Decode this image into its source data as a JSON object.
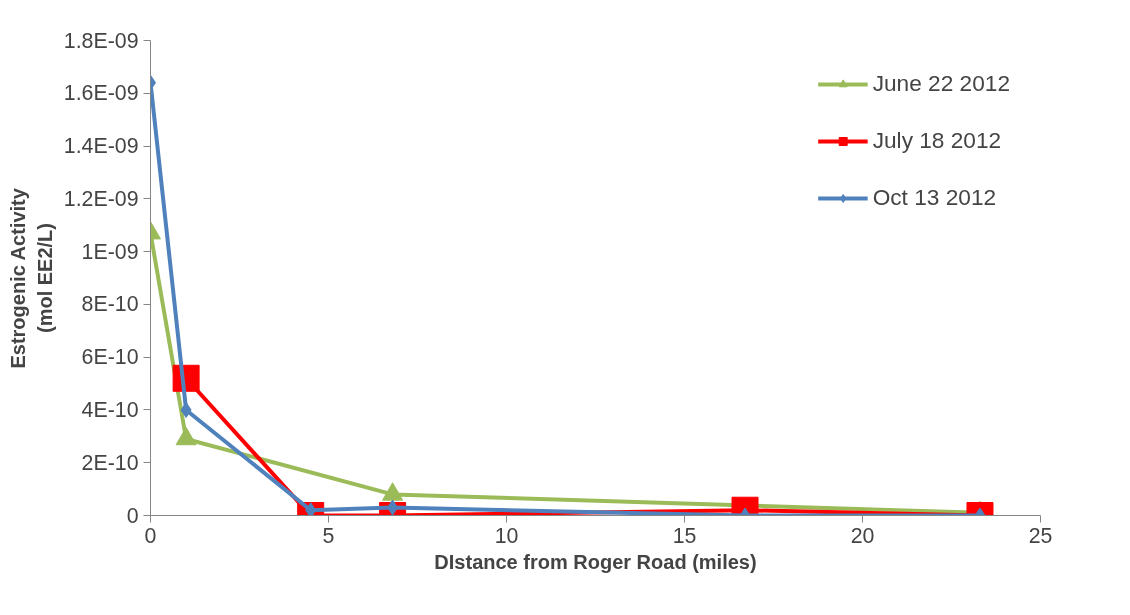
{
  "chart_data": {
    "type": "line",
    "xlabel": "DIstance from Roger Road (miles)",
    "ylabel": "Estrogenic Activity\n(mol EE2/L)",
    "xlim": [
      0,
      25
    ],
    "xticks": [
      0,
      5,
      10,
      15,
      20,
      25
    ],
    "ylim": [
      0,
      1.8e-09
    ],
    "yticks": [
      {
        "value": 0,
        "label": "0"
      },
      {
        "value": 2e-10,
        "label": "2E-10"
      },
      {
        "value": 4e-10,
        "label": "4E-10"
      },
      {
        "value": 6e-10,
        "label": "6E-10"
      },
      {
        "value": 8e-10,
        "label": "8E-10"
      },
      {
        "value": 1e-09,
        "label": "1E-09"
      },
      {
        "value": 1.2e-09,
        "label": "1.2E-09"
      },
      {
        "value": 1.4e-09,
        "label": "1.4E-09"
      },
      {
        "value": 1.6e-09,
        "label": "1.6E-09"
      },
      {
        "value": 1.8e-09,
        "label": "1.8E-09"
      }
    ],
    "x": [
      0,
      1,
      4.5,
      6.8,
      16.7,
      23.3
    ],
    "series": [
      {
        "name": "June 22 2012",
        "color": "#9bbb59",
        "marker": "triangle",
        "values": [
          1.07e-09,
          2.9e-10,
          null,
          8e-11,
          null,
          1e-11
        ],
        "x": [
          0,
          1,
          4.5,
          6.8,
          16.7,
          23.3
        ]
      },
      {
        "name": "July 18 2012",
        "color": "#ff0000",
        "marker": "square",
        "values": [
          null,
          5.2e-10,
          0,
          0,
          2e-11,
          0
        ]
      },
      {
        "name": "Oct 13 2012",
        "color": "#4f81bd",
        "marker": "diamond",
        "values": [
          1.64e-09,
          4e-10,
          2e-11,
          3e-11,
          0,
          0
        ]
      }
    ],
    "grid": false,
    "legend": "top right",
    "line_style": "solid"
  }
}
